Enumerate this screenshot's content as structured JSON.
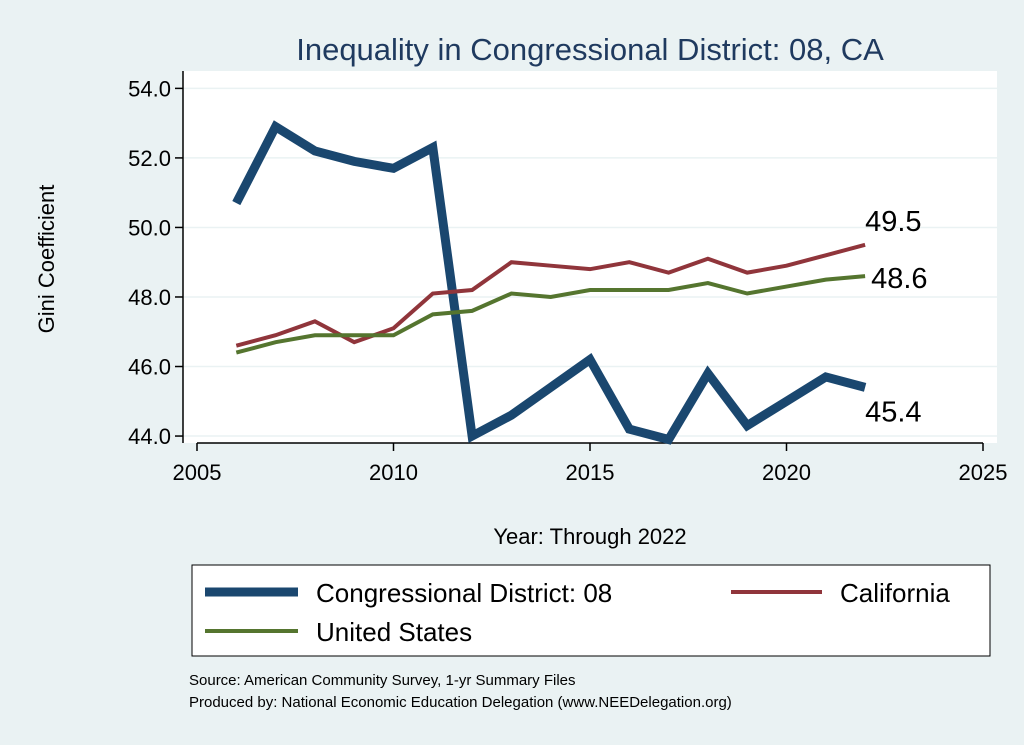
{
  "chart_data": {
    "type": "line",
    "title": "Inequality in Congressional District:  08, CA",
    "xlabel": "Year: Through 2022",
    "ylabel": "Gini Coefficient",
    "xlim": [
      2005,
      2025
    ],
    "ylim": [
      43.8,
      54.5
    ],
    "x_ticks": [
      2005,
      2010,
      2015,
      2020,
      2025
    ],
    "y_ticks": [
      44,
      46,
      48,
      50,
      52,
      54
    ],
    "y_tick_labels": [
      "44.0",
      "46.0",
      "48.0",
      "50.0",
      "52.0",
      "54.0"
    ],
    "x": [
      2006,
      2007,
      2008,
      2009,
      2010,
      2011,
      2012,
      2013,
      2014,
      2015,
      2016,
      2017,
      2018,
      2019,
      2020,
      2021,
      2022
    ],
    "series": [
      {
        "name": "Congressional District:  08",
        "color": "#1a476f",
        "values": [
          50.7,
          52.9,
          52.2,
          51.9,
          51.7,
          52.3,
          44.0,
          44.6,
          45.4,
          46.2,
          44.2,
          43.9,
          45.8,
          44.3,
          45.0,
          45.7,
          45.4
        ],
        "end_label": "45.4"
      },
      {
        "name": "California",
        "color": "#90353b",
        "values": [
          46.6,
          46.9,
          47.3,
          46.7,
          47.1,
          48.1,
          48.2,
          49.0,
          48.9,
          48.8,
          49.0,
          48.7,
          49.1,
          48.7,
          48.9,
          49.2,
          49.5
        ],
        "end_label": "49.5"
      },
      {
        "name": "United States",
        "color": "#55752f",
        "values": [
          46.4,
          46.7,
          46.9,
          46.9,
          46.9,
          47.5,
          47.6,
          48.1,
          48.0,
          48.2,
          48.2,
          48.2,
          48.4,
          48.1,
          48.3,
          48.5,
          48.6
        ],
        "end_label": "48.6"
      }
    ],
    "source": "Source: American Community Survey, 1-yr Summary Files",
    "producer": "Produced by: National Economic Education Delegation (www.NEEDelegation.org)"
  }
}
